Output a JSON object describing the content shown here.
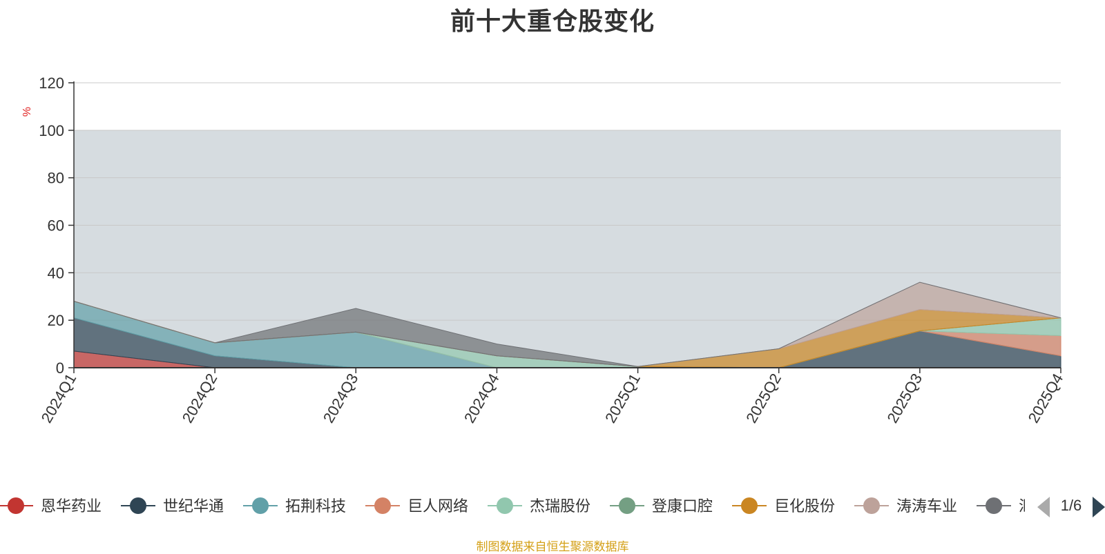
{
  "chart_data": {
    "type": "area",
    "title": "前十大重仓股变化",
    "ylabel": "%",
    "ylim": [
      0,
      120
    ],
    "yticks": [
      0,
      20,
      40,
      60,
      80,
      100,
      120
    ],
    "grid": true,
    "x": [
      "2024Q1",
      "2024Q2",
      "2024Q3",
      "2024Q4",
      "2025Q1",
      "2025Q2",
      "2025Q3",
      "2025Q4"
    ],
    "series": [
      {
        "name": "恩华药业",
        "color": "#c23531",
        "values": [
          7,
          0,
          0,
          0,
          0,
          0,
          0,
          0
        ]
      },
      {
        "name": "世纪华通",
        "color": "#2f4554",
        "values": [
          14,
          5,
          0,
          0,
          0,
          0,
          15.5,
          5
        ]
      },
      {
        "name": "拓荆科技",
        "color": "#61a0a8",
        "values": [
          7,
          5.5,
          15,
          0,
          0,
          0,
          0,
          0
        ]
      },
      {
        "name": "巨人网络",
        "color": "#d48265",
        "values": [
          0,
          0,
          0,
          0,
          0,
          0,
          0,
          8.5
        ]
      },
      {
        "name": "杰瑞股份",
        "color": "#91c7ae",
        "values": [
          0,
          0,
          0,
          5,
          0.5,
          0,
          0,
          7.5
        ]
      },
      {
        "name": "登康口腔",
        "color": "#749f83",
        "values": [
          0,
          0,
          0,
          0,
          0,
          0,
          0,
          0
        ]
      },
      {
        "name": "巨化股份",
        "color": "#ca8622",
        "values": [
          0,
          0,
          0,
          0,
          0,
          8,
          9,
          0
        ]
      },
      {
        "name": "涛涛车业",
        "color": "#bda29a",
        "values": [
          0,
          0,
          0,
          0,
          0,
          0,
          11.5,
          0
        ]
      },
      {
        "name": "汇川技术",
        "color": "#6e7074",
        "values": [
          0,
          0,
          10,
          5,
          0,
          0,
          0,
          0
        ]
      }
    ],
    "legend_page": "1/6",
    "legend_position": "bottom",
    "source": "制图数据来自恒生聚源数据库"
  },
  "icons": {
    "legend_prev": "triangle-left-icon",
    "legend_next": "triangle-right-icon"
  }
}
